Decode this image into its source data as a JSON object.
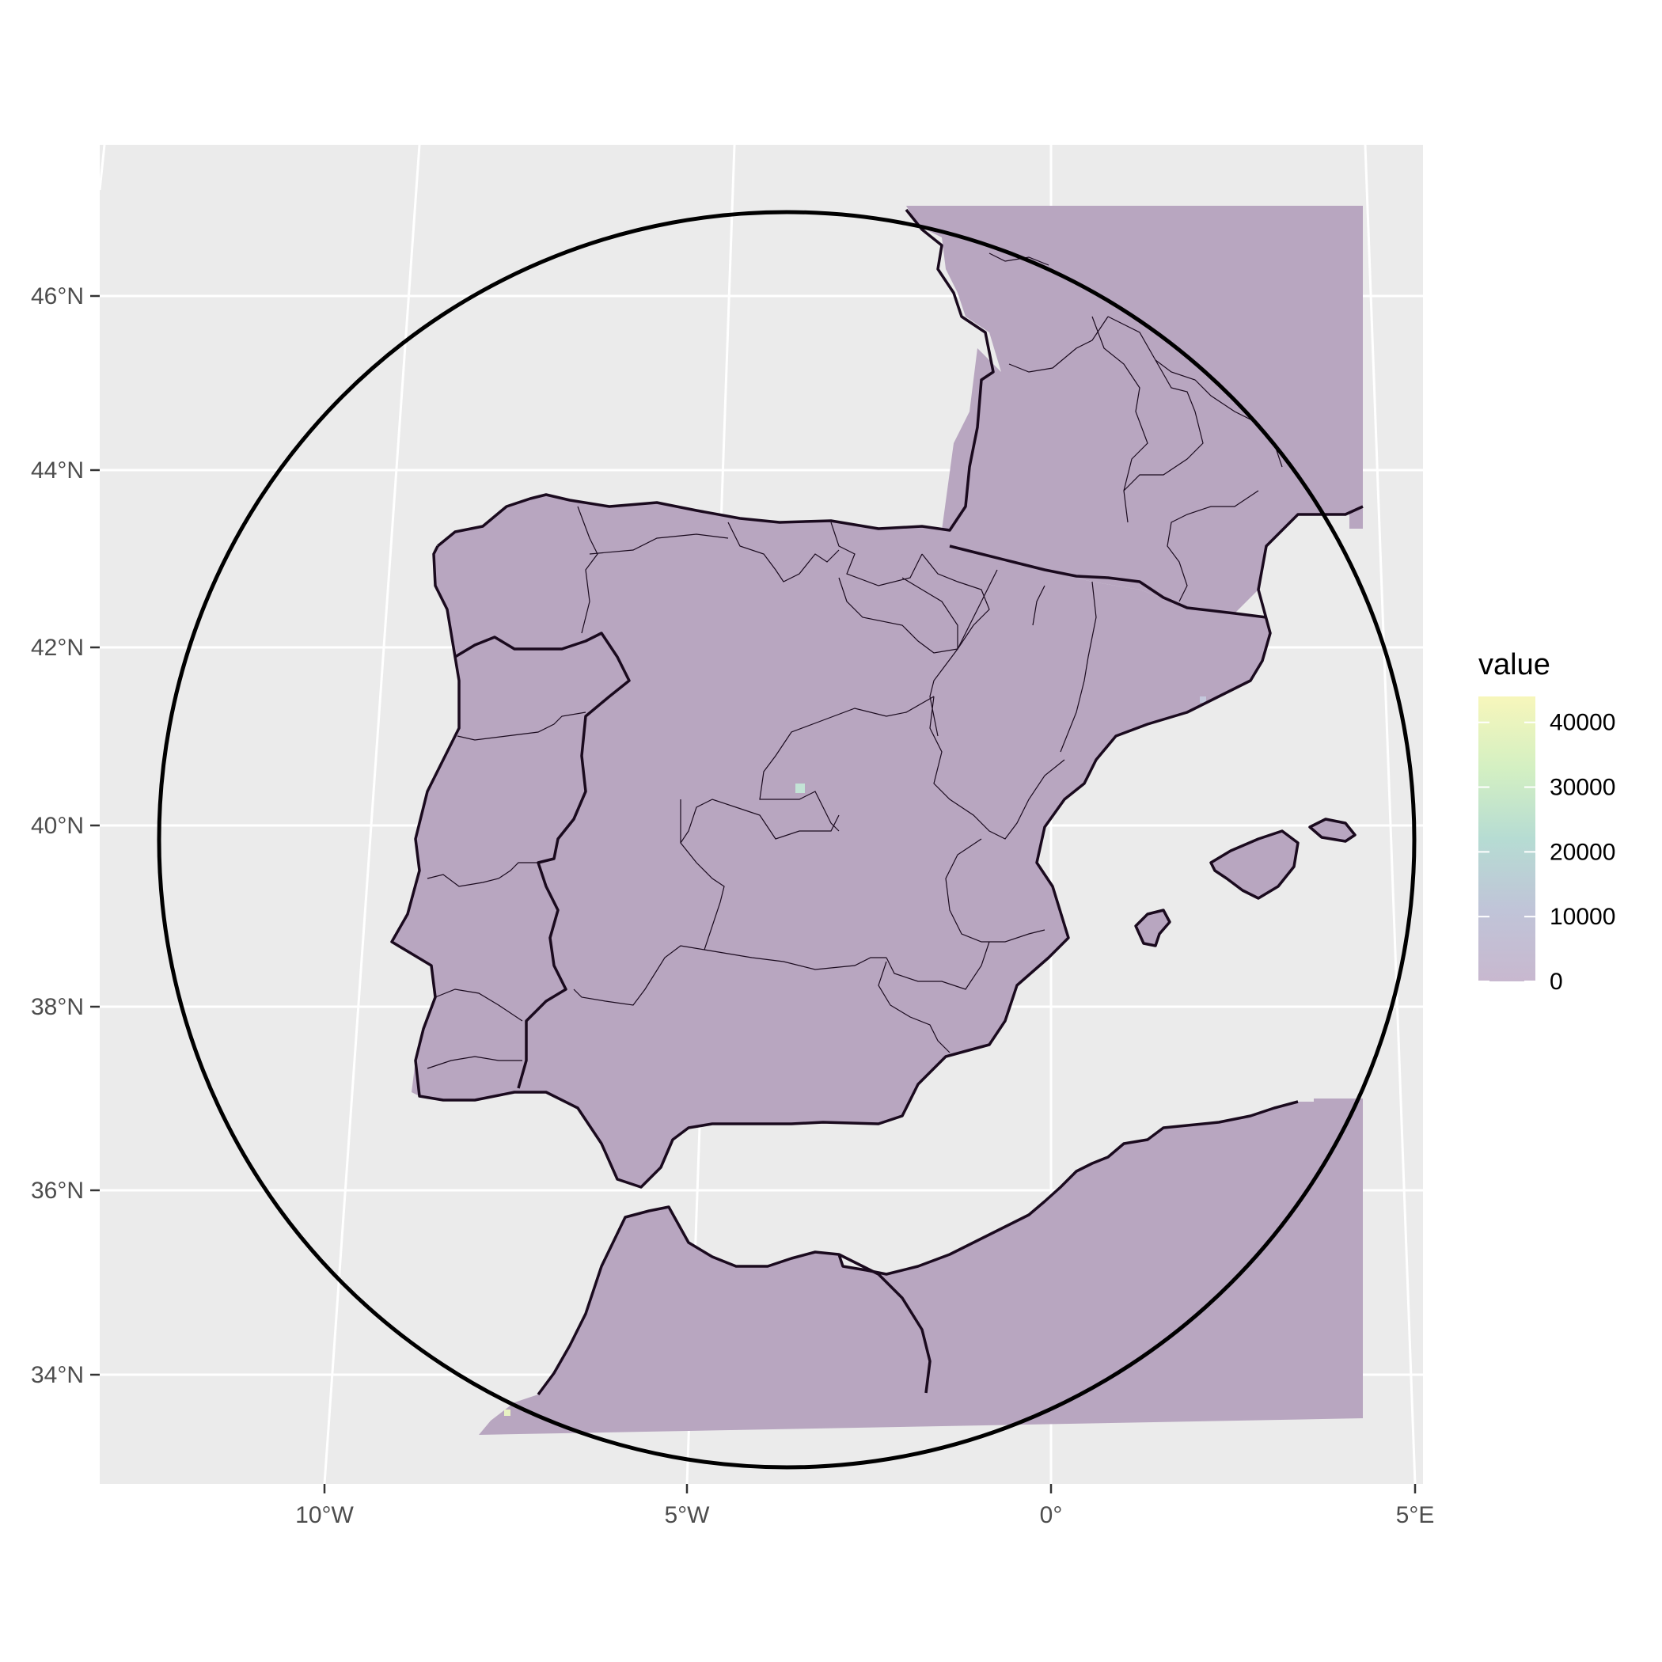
{
  "map": {
    "legend": {
      "title": "value",
      "ticks": [
        {
          "value": 40000,
          "label": "40000"
        },
        {
          "value": 30000,
          "label": "30000"
        },
        {
          "value": 20000,
          "label": "20000"
        },
        {
          "value": 10000,
          "label": "10000"
        },
        {
          "value": 0,
          "label": "0"
        }
      ],
      "range": [
        0,
        44000
      ],
      "colors": [
        "#c8b8cf",
        "#c0c4d8",
        "#b6dcd3",
        "#d4f0c2",
        "#f7f6bb"
      ]
    },
    "lat_labels": [
      "46°N",
      "44°N",
      "42°N",
      "40°N",
      "38°N",
      "36°N",
      "34°N"
    ],
    "lon_labels": [
      "10°W",
      "5°W",
      "0°",
      "5°E"
    ],
    "colors": {
      "panel": "#ebebeb",
      "land_fill": "#b8a6c0",
      "outline": "#1a0a1e",
      "gridline": "#ffffff"
    }
  }
}
